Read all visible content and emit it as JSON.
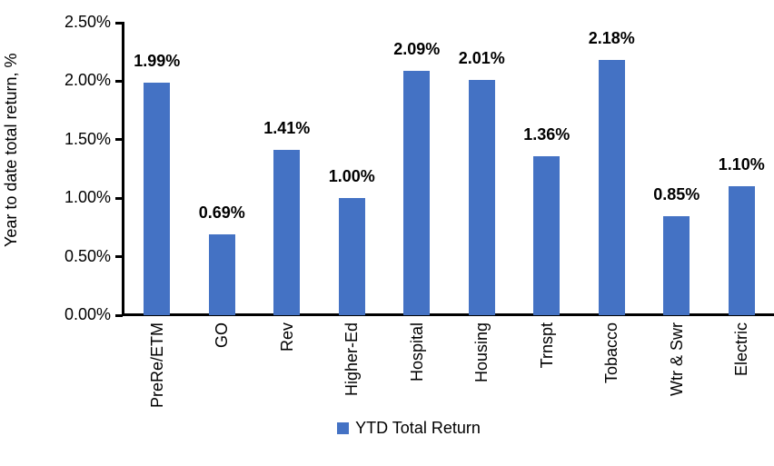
{
  "chart_data": {
    "type": "bar",
    "title": "",
    "xlabel": "",
    "ylabel": "Year to date total return, %",
    "categories": [
      "PreRe/ETM",
      "GO",
      "Rev",
      "Higher-Ed",
      "Hospital",
      "Housing",
      "Trnspt",
      "Tobacco",
      "Wtr & Swr",
      "Electric"
    ],
    "values": [
      1.99,
      0.69,
      1.41,
      1.0,
      2.09,
      2.01,
      1.36,
      2.18,
      0.85,
      1.1
    ],
    "value_labels": [
      "1.99%",
      "0.69%",
      "1.41%",
      "1.00%",
      "2.09%",
      "2.01%",
      "1.36%",
      "2.18%",
      "0.85%",
      "1.10%"
    ],
    "ylim": [
      0,
      2.5
    ],
    "ytick_step": 0.5,
    "ytick_labels": [
      "0.00%",
      "0.50%",
      "1.00%",
      "1.50%",
      "2.00%",
      "2.50%"
    ],
    "grid": false,
    "legend_position": "bottom",
    "legend": [
      "YTD Total Return"
    ],
    "colors": {
      "bar": "#4472C4",
      "axis": "#000000",
      "text": "#000000",
      "background": "#FFFFFF"
    }
  }
}
